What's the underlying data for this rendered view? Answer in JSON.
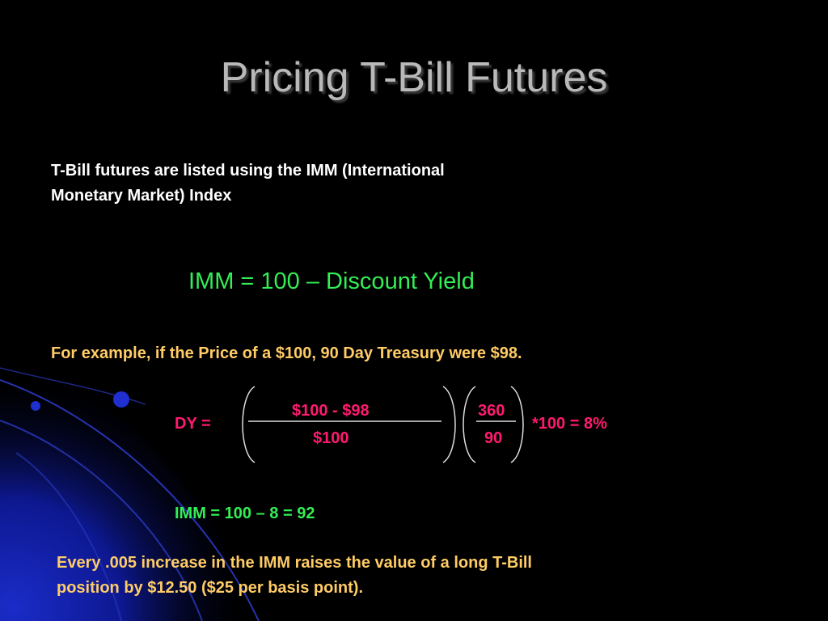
{
  "slide": {
    "title": "Pricing T-Bill Futures",
    "intro_line1": "T-Bill futures are listed using the IMM (International",
    "intro_line2": "Monetary Market) Index",
    "imm_formula": "IMM = 100 – Discount Yield",
    "example": "For example, if the Price of a $100, 90 Day Treasury were $98.",
    "calculation": {
      "dy_label": "DY =",
      "fraction1_numerator": "$100 - $98",
      "fraction1_denominator": "$100",
      "fraction2_numerator": "360",
      "fraction2_denominator": "90",
      "multiplier": "*100 = 8%"
    },
    "imm_result": "IMM = 100 – 8 = 92",
    "closing_line1": "Every .005 increase in the IMM raises the value of a long T-Bill",
    "closing_line2": "position by $12.50 ($25 per basis point)."
  },
  "colors": {
    "background": "#000000",
    "title": "#b9b9b9",
    "body_text": "#ffffff",
    "formula_green": "#33ee55",
    "example_orange": "#ffcc66",
    "calc_pink": "#ff1a6e",
    "accent_blue": "#1a2cc8"
  }
}
